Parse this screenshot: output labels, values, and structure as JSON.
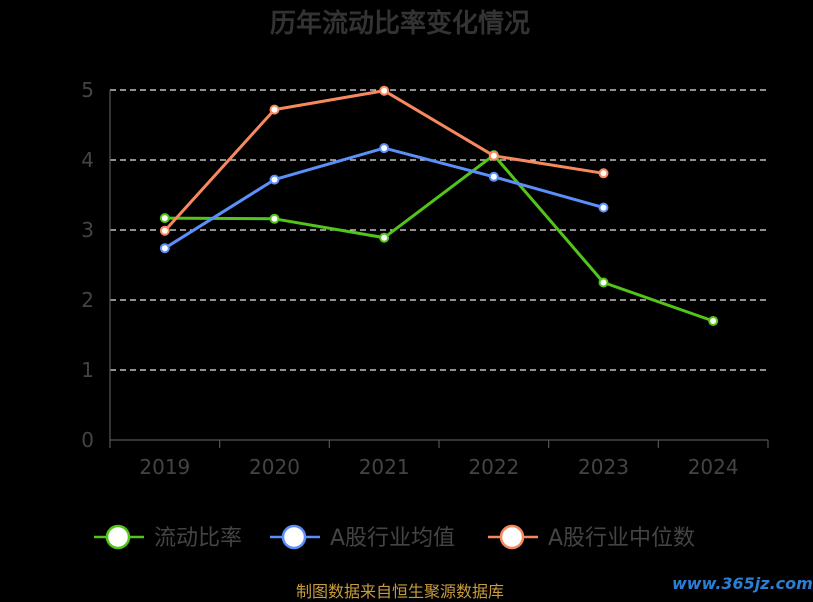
{
  "chart_data": {
    "type": "line",
    "title": "历年流动比率变化情况",
    "categories": [
      "2019",
      "2020",
      "2021",
      "2022",
      "2023",
      "2024"
    ],
    "yticks": [
      "0",
      "1",
      "2",
      "3",
      "4",
      "5"
    ],
    "ylim": [
      0,
      5
    ],
    "grid": true,
    "legend_position": "bottom",
    "series": [
      {
        "name": "流动比率",
        "color": "#52c41a",
        "values": [
          3.17,
          3.16,
          2.89,
          4.07,
          2.25,
          1.7
        ]
      },
      {
        "name": "A股行业均值",
        "color": "#5b8ff9",
        "values": [
          2.74,
          3.72,
          4.17,
          3.76,
          3.32,
          null
        ]
      },
      {
        "name": "A股行业中位数",
        "color": "#f7895f",
        "values": [
          2.99,
          4.72,
          4.99,
          4.06,
          3.81,
          null
        ]
      }
    ]
  },
  "footer": {
    "source": "制图数据来自恒生聚源数据库",
    "watermark": "www.365jz.com"
  }
}
